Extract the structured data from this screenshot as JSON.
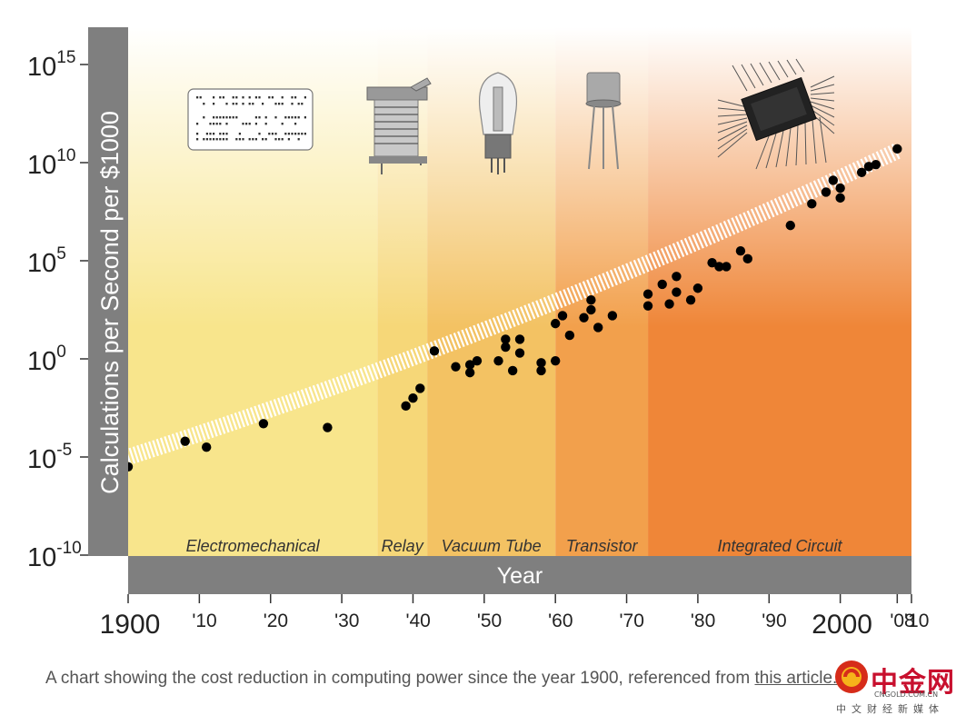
{
  "chart_data": {
    "type": "scatter",
    "yscale": "log",
    "ylabel": "Calculations per Second per $1000",
    "xlabel": "Year",
    "xlim": [
      1900,
      2010
    ],
    "ylim_exponent": [
      -10,
      16
    ],
    "y_ticks": [
      {
        "exp": 15,
        "base": "10",
        "sup": "15"
      },
      {
        "exp": 10,
        "base": "10",
        "sup": "10"
      },
      {
        "exp": 5,
        "base": "10",
        "sup": "5"
      },
      {
        "exp": 0,
        "base": "10",
        "sup": "0"
      },
      {
        "exp": -5,
        "base": "10",
        "sup": "-5"
      },
      {
        "exp": -10,
        "base": "10",
        "sup": "-10"
      }
    ],
    "x_ticks": [
      {
        "year": 1900,
        "label": "1900",
        "big": true
      },
      {
        "year": 1910,
        "label": "'10",
        "big": false
      },
      {
        "year": 1920,
        "label": "'20",
        "big": false
      },
      {
        "year": 1930,
        "label": "'30",
        "big": false
      },
      {
        "year": 1940,
        "label": "'40",
        "big": false
      },
      {
        "year": 1950,
        "label": "'50",
        "big": false
      },
      {
        "year": 1960,
        "label": "'60",
        "big": false
      },
      {
        "year": 1970,
        "label": "'70",
        "big": false
      },
      {
        "year": 1980,
        "label": "'80",
        "big": false
      },
      {
        "year": 1990,
        "label": "'90",
        "big": false
      },
      {
        "year": 2000,
        "label": "2000",
        "big": true
      },
      {
        "year": 2008,
        "label": "'08",
        "big": false
      },
      {
        "year": 2010,
        "label": "'10",
        "big": false
      }
    ],
    "eras": [
      {
        "name": "Electromechanical",
        "start": 1900,
        "end": 1935,
        "color": "#f8e58c"
      },
      {
        "name": "Relay",
        "start": 1935,
        "end": 1942,
        "color": "#f6d778"
      },
      {
        "name": "Vacuum Tube",
        "start": 1942,
        "end": 1960,
        "color": "#f3c263"
      },
      {
        "name": "Transistor",
        "start": 1960,
        "end": 1973,
        "color": "#f2a04c"
      },
      {
        "name": "Integrated Circuit",
        "start": 1973,
        "end": 2010,
        "color": "#ef8638"
      }
    ],
    "trend": {
      "start": [
        1900,
        -5.0
      ],
      "end": [
        2008,
        10.6
      ],
      "curvature": 0.00052
    },
    "points": [
      [
        1900,
        -5.5
      ],
      [
        1908,
        -4.2
      ],
      [
        1911,
        -4.5
      ],
      [
        1919,
        -3.3
      ],
      [
        1928,
        -3.5
      ],
      [
        1939,
        -2.4
      ],
      [
        1940,
        -2.0
      ],
      [
        1941,
        -1.5
      ],
      [
        1943,
        0.4
      ],
      [
        1946,
        -0.4
      ],
      [
        1948,
        -0.7
      ],
      [
        1948,
        -0.3
      ],
      [
        1949,
        -0.1
      ],
      [
        1952,
        -0.1
      ],
      [
        1953,
        0.6
      ],
      [
        1953,
        1.0
      ],
      [
        1954,
        -0.6
      ],
      [
        1955,
        0.3
      ],
      [
        1955,
        1.0
      ],
      [
        1958,
        -0.6
      ],
      [
        1958,
        -0.2
      ],
      [
        1960,
        1.8
      ],
      [
        1960,
        -0.1
      ],
      [
        1961,
        2.2
      ],
      [
        1962,
        1.2
      ],
      [
        1964,
        2.1
      ],
      [
        1965,
        3.0
      ],
      [
        1965,
        2.5
      ],
      [
        1966,
        1.6
      ],
      [
        1968,
        2.2
      ],
      [
        1973,
        3.3
      ],
      [
        1973,
        2.7
      ],
      [
        1975,
        3.8
      ],
      [
        1976,
        2.8
      ],
      [
        1977,
        3.4
      ],
      [
        1977,
        4.2
      ],
      [
        1979,
        3.0
      ],
      [
        1980,
        3.6
      ],
      [
        1982,
        4.9
      ],
      [
        1983,
        4.7
      ],
      [
        1984,
        4.7
      ],
      [
        1986,
        5.5
      ],
      [
        1987,
        5.1
      ],
      [
        1993,
        6.8
      ],
      [
        1996,
        7.9
      ],
      [
        1998,
        8.5
      ],
      [
        1999,
        9.1
      ],
      [
        2000,
        8.2
      ],
      [
        2000,
        8.7
      ],
      [
        2003,
        9.5
      ],
      [
        2004,
        9.8
      ],
      [
        2005,
        9.9
      ],
      [
        2008,
        10.7
      ]
    ]
  },
  "caption": {
    "text": "A chart showing the cost reduction in computing power since the year 1900, referenced from ",
    "link": "this article."
  },
  "watermark": {
    "title": "中金网",
    "sub": "CNGOLD.COM.CN",
    "sub2": "中文财经新媒体"
  }
}
